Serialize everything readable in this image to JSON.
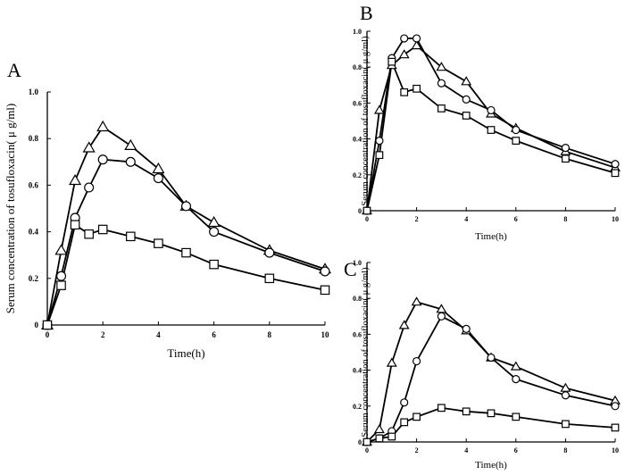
{
  "chart_data": [
    {
      "type": "line",
      "panel": "A",
      "xlabel": "Time(h)",
      "ylabel": "Serum concentration of tosufloxacin( μ g/ml)",
      "xlim": [
        0,
        10
      ],
      "ylim": [
        0,
        1.0
      ],
      "xticks": [
        "0",
        "2",
        "4",
        "6",
        "8",
        "10"
      ],
      "yticks": [
        "0",
        "0.2",
        "0.4",
        "0.6",
        "0.8",
        "1.0"
      ],
      "series": [
        {
          "name": "triangle",
          "marker": "triangle",
          "x": [
            0,
            0.5,
            1,
            1.5,
            2,
            3,
            4,
            5,
            6,
            8,
            10
          ],
          "y": [
            0,
            0.32,
            0.62,
            0.76,
            0.85,
            0.77,
            0.67,
            0.51,
            0.44,
            0.32,
            0.24
          ]
        },
        {
          "name": "circle",
          "marker": "circle",
          "x": [
            0,
            0.5,
            1,
            1.5,
            2,
            3,
            4,
            5,
            6,
            8,
            10
          ],
          "y": [
            0,
            0.21,
            0.46,
            0.59,
            0.71,
            0.7,
            0.63,
            0.51,
            0.4,
            0.31,
            0.23
          ]
        },
        {
          "name": "square",
          "marker": "square",
          "x": [
            0,
            0.5,
            1,
            1.5,
            2,
            3,
            4,
            5,
            6,
            8,
            10
          ],
          "y": [
            0,
            0.17,
            0.43,
            0.39,
            0.41,
            0.38,
            0.35,
            0.31,
            0.26,
            0.2,
            0.15
          ]
        }
      ]
    },
    {
      "type": "line",
      "panel": "B",
      "xlabel": "Time(h)",
      "ylabel": "Serum concentration of tosufloxacin( μ g/ml)",
      "xlim": [
        0,
        10
      ],
      "ylim": [
        0,
        1.0
      ],
      "xticks": [
        "0",
        "2",
        "4",
        "6",
        "8",
        "10"
      ],
      "yticks": [
        "0",
        "0.2",
        "0.4",
        "0.6",
        "0.8",
        "1.0"
      ],
      "series": [
        {
          "name": "triangle",
          "marker": "triangle",
          "x": [
            0,
            0.5,
            1,
            1.5,
            2,
            3,
            4,
            5,
            6,
            8,
            10
          ],
          "y": [
            0,
            0.56,
            0.81,
            0.87,
            0.92,
            0.8,
            0.72,
            0.54,
            0.46,
            0.33,
            0.24
          ]
        },
        {
          "name": "circle",
          "marker": "circle",
          "x": [
            0,
            0.5,
            1,
            1.5,
            2,
            3,
            4,
            5,
            6,
            8,
            10
          ],
          "y": [
            0,
            0.39,
            0.85,
            0.96,
            0.96,
            0.71,
            0.62,
            0.56,
            0.45,
            0.35,
            0.26
          ]
        },
        {
          "name": "square",
          "marker": "square",
          "x": [
            0,
            0.5,
            1,
            1.5,
            2,
            3,
            4,
            5,
            6,
            8,
            10
          ],
          "y": [
            0,
            0.31,
            0.83,
            0.66,
            0.68,
            0.57,
            0.53,
            0.45,
            0.39,
            0.29,
            0.21
          ]
        }
      ]
    },
    {
      "type": "line",
      "panel": "C",
      "xlabel": "Time(h)",
      "ylabel": "Serum concentration of tosufloxacin( μ g/ml)",
      "xlim": [
        0,
        10
      ],
      "ylim": [
        0,
        1.0
      ],
      "xticks": [
        "0",
        "2",
        "4",
        "6",
        "8",
        "10"
      ],
      "yticks": [
        "0",
        "0.2",
        "0.4",
        "0.6",
        "0.8",
        "1.0"
      ],
      "series": [
        {
          "name": "triangle",
          "marker": "triangle",
          "x": [
            0,
            0.5,
            1,
            1.5,
            2,
            3,
            4,
            5,
            6,
            8,
            10
          ],
          "y": [
            0,
            0.07,
            0.44,
            0.65,
            0.78,
            0.74,
            0.62,
            0.47,
            0.42,
            0.3,
            0.23
          ]
        },
        {
          "name": "circle",
          "marker": "circle",
          "x": [
            0,
            0.5,
            1,
            1.5,
            2,
            3,
            4,
            5,
            6,
            8,
            10
          ],
          "y": [
            0,
            0.02,
            0.06,
            0.22,
            0.45,
            0.7,
            0.63,
            0.47,
            0.35,
            0.26,
            0.2
          ]
        },
        {
          "name": "square",
          "marker": "square",
          "x": [
            0,
            0.5,
            1,
            1.5,
            2,
            3,
            4,
            5,
            6,
            8,
            10
          ],
          "y": [
            0,
            0.02,
            0.03,
            0.11,
            0.14,
            0.19,
            0.17,
            0.16,
            0.14,
            0.1,
            0.08
          ]
        }
      ]
    }
  ]
}
